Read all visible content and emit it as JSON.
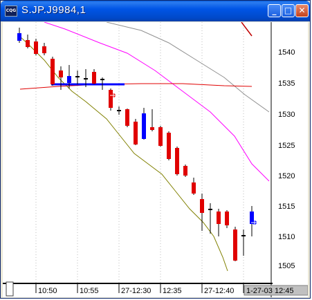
{
  "window": {
    "title": "S.JP.J9984,1",
    "icon": "app-icon",
    "buttons": {
      "minimize": "_",
      "maximize": "□",
      "close": "✕"
    }
  },
  "chart": {
    "price_axis_labels": [
      "1540",
      "1535",
      "1530",
      "1525",
      "1520",
      "1515",
      "1510",
      "1505"
    ],
    "time_axis_labels": [
      "10:50",
      "10:55",
      "27-12:30",
      "12:35",
      "27-12:40",
      "1-27-03  12:45"
    ],
    "colors": {
      "up": "#0000ff",
      "down": "#e00000",
      "ma_magenta": "#ff00ff",
      "ma_gray": "#808080",
      "ma_olive": "#808000",
      "ma_red": "#e00000",
      "level_line": "#0000ff"
    }
  }
}
